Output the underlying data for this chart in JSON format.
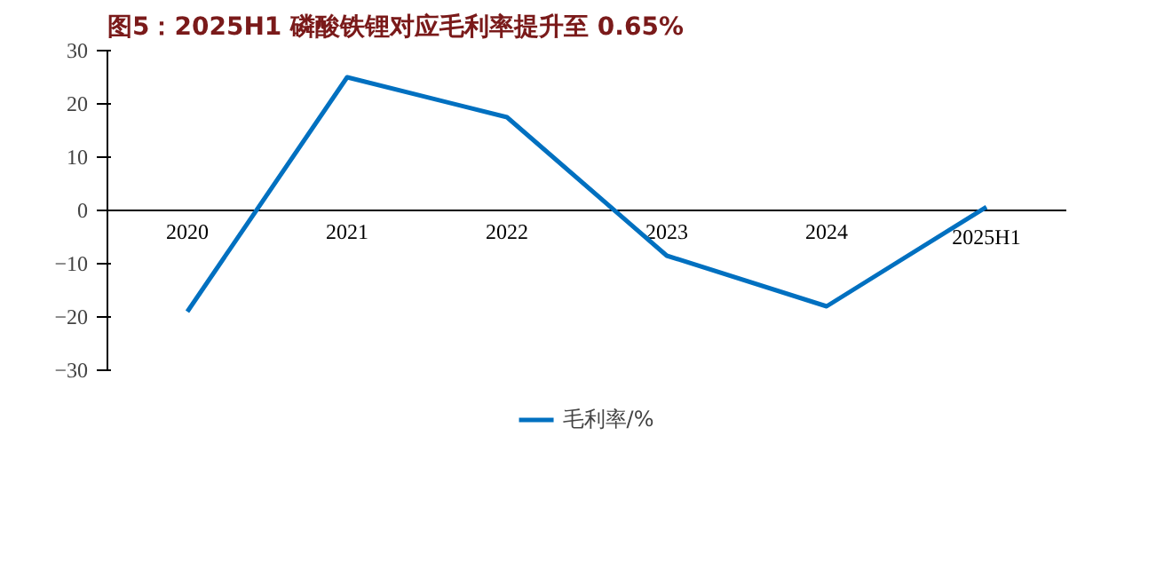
{
  "chart_data": {
    "type": "line",
    "title": "图5：2025H1 磷酸铁锂对应毛利率提升至 0.65%",
    "categories": [
      "2020",
      "2021",
      "2022",
      "2023",
      "2024",
      "2025H1"
    ],
    "series": [
      {
        "name": "毛利率/%",
        "color": "#0070c0",
        "values": [
          -19,
          25,
          17.5,
          -8.5,
          -18,
          0.65
        ]
      }
    ],
    "ylim": [
      -30,
      30
    ],
    "yticks": [
      -30,
      -20,
      -10,
      0,
      10,
      20,
      30
    ],
    "grid": false,
    "legend": "bottom",
    "marker": "none",
    "line_style": "solid"
  }
}
